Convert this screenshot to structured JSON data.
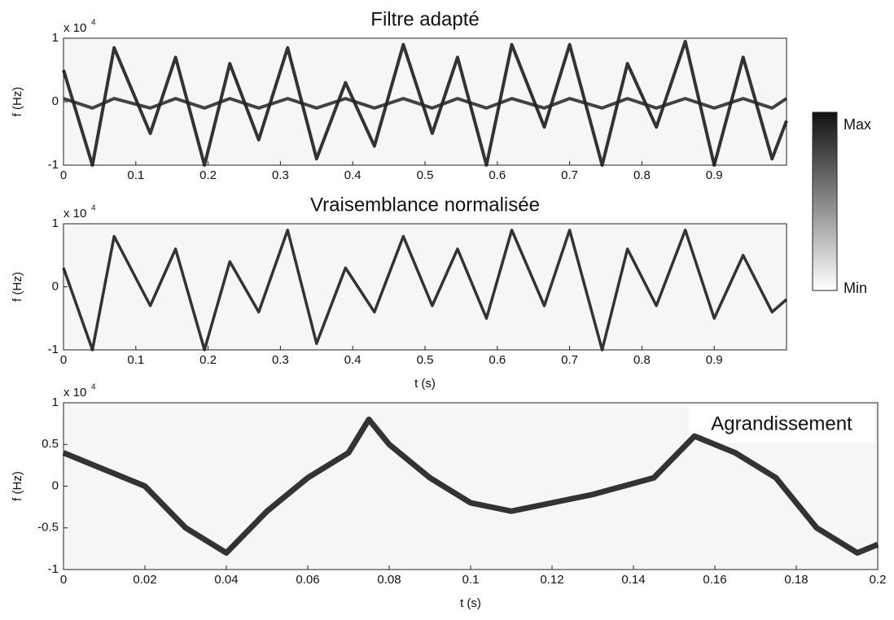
{
  "chart_data": [
    {
      "type": "line",
      "title": "Filtre adapté",
      "y_label": "f  (Hz)",
      "y_multiplier": {
        "base": "x 10",
        "exponent": "4"
      },
      "colorbar": {
        "max_label": "Max",
        "min_label": "Min"
      },
      "x": [
        0,
        0.04,
        0.07,
        0.12,
        0.155,
        0.195,
        0.23,
        0.27,
        0.31,
        0.35,
        0.39,
        0.43,
        0.47,
        0.51,
        0.545,
        0.585,
        0.62,
        0.665,
        0.7,
        0.745,
        0.78,
        0.82,
        0.86,
        0.9,
        0.94,
        0.98,
        1.0
      ],
      "series": [
        {
          "color": "#111111",
          "values": [
            0.5,
            -1,
            0.85,
            -0.5,
            0.7,
            -1,
            0.6,
            -0.6,
            0.85,
            -0.9,
            0.3,
            -0.7,
            0.9,
            -0.5,
            0.7,
            -1,
            0.9,
            -0.4,
            0.9,
            -1,
            0.6,
            -0.4,
            0.95,
            -1,
            0.7,
            -0.9,
            -0.3
          ]
        },
        {
          "color": "#222222",
          "values": [
            0.05,
            -0.1,
            0.05,
            -0.1,
            0.05,
            -0.1,
            0.05,
            -0.1,
            0.05,
            -0.1,
            0.05,
            -0.1,
            0.05,
            -0.1,
            0.05,
            -0.1,
            0.05,
            -0.1,
            0.05,
            -0.1,
            0.05,
            -0.1,
            0.05,
            -0.1,
            0.05,
            -0.1,
            0.05
          ]
        }
      ],
      "xlim": [
        0,
        1
      ],
      "xticks": [
        0,
        0.1,
        0.2,
        0.3,
        0.4,
        0.5,
        0.6,
        0.7,
        0.8,
        0.9
      ],
      "ylim": [
        -1,
        1
      ],
      "yticks": [
        -1,
        0,
        1
      ]
    },
    {
      "type": "line",
      "title": "Vraisemblance normalisée",
      "y_label": "f  (Hz)",
      "x_label": "t (s)",
      "y_multiplier": {
        "base": "x 10",
        "exponent": "4"
      },
      "x": [
        0,
        0.04,
        0.07,
        0.12,
        0.155,
        0.195,
        0.23,
        0.27,
        0.31,
        0.35,
        0.39,
        0.43,
        0.47,
        0.51,
        0.545,
        0.585,
        0.62,
        0.665,
        0.7,
        0.745,
        0.78,
        0.82,
        0.86,
        0.9,
        0.94,
        0.98,
        1.0
      ],
      "series": [
        {
          "color": "#111111",
          "values": [
            0.3,
            -1,
            0.8,
            -0.3,
            0.6,
            -1,
            0.4,
            -0.4,
            0.9,
            -0.9,
            0.3,
            -0.4,
            0.8,
            -0.3,
            0.6,
            -0.5,
            0.9,
            -0.3,
            0.9,
            -1,
            0.6,
            -0.3,
            0.9,
            -0.5,
            0.5,
            -0.4,
            -0.2
          ]
        }
      ],
      "xlim": [
        0,
        1
      ],
      "xticks": [
        0,
        0.1,
        0.2,
        0.3,
        0.4,
        0.5,
        0.6,
        0.7,
        0.8,
        0.9
      ],
      "ylim": [
        -1,
        1
      ],
      "yticks": [
        -1,
        0,
        1
      ]
    },
    {
      "type": "line",
      "annotation": "Agrandissement",
      "y_label": "f  (Hz)",
      "x_label": "t (s)",
      "y_multiplier": {
        "base": "x 10",
        "exponent": "4"
      },
      "x": [
        0,
        0.01,
        0.02,
        0.03,
        0.04,
        0.05,
        0.06,
        0.07,
        0.075,
        0.08,
        0.09,
        0.1,
        0.11,
        0.12,
        0.13,
        0.145,
        0.155,
        0.165,
        0.175,
        0.185,
        0.195,
        0.2
      ],
      "series": [
        {
          "color": "#111111",
          "values": [
            0.4,
            0.2,
            0,
            -0.5,
            -0.8,
            -0.3,
            0.1,
            0.4,
            0.8,
            0.5,
            0.1,
            -0.2,
            -0.3,
            -0.2,
            -0.1,
            0.1,
            0.6,
            0.4,
            0.1,
            -0.5,
            -0.8,
            -0.7
          ]
        }
      ],
      "xlim": [
        0,
        0.2
      ],
      "xticks": [
        0,
        0.02,
        0.04,
        0.06,
        0.08,
        0.1,
        0.12,
        0.14,
        0.16,
        0.18,
        0.2
      ],
      "ylim": [
        -1,
        1
      ],
      "yticks": [
        -1,
        -0.5,
        0,
        0.5,
        1
      ]
    }
  ]
}
